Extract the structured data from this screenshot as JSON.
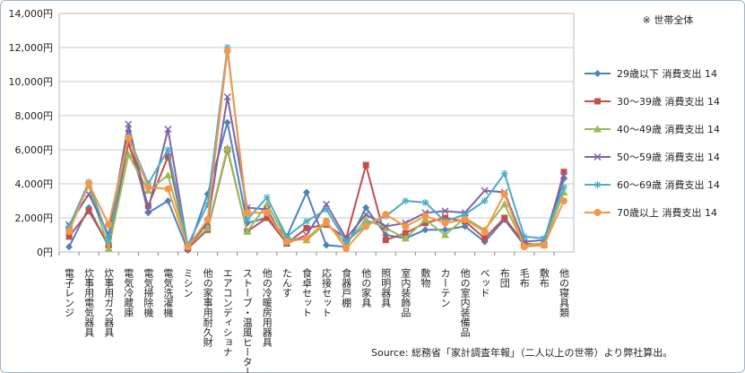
{
  "note": "※ 世帯全体",
  "source": "Source: 総務省「家計調査年報」（二人以上の世帯）より弊社算出。",
  "chart_data": {
    "type": "line",
    "ylim": [
      0,
      14000
    ],
    "yticks": [
      0,
      2000,
      4000,
      6000,
      8000,
      10000,
      12000,
      14000
    ],
    "ytick_labels": [
      "0円",
      "2,000円",
      "4,000円",
      "6,000円",
      "8,000円",
      "10,000円",
      "12,000円",
      "14,000円"
    ],
    "grid": true,
    "legend_position": "right",
    "categories": [
      "電子レンジ",
      "炊事用電気器具",
      "炊事用ガス器具",
      "電気冷蔵庫",
      "電気掃除機",
      "電気洗濯機",
      "ミシン",
      "他の家事用耐久財",
      "エアコンディショナ",
      "ストーブ・温風ヒーター",
      "他の冷暖房用器具",
      "たんす",
      "食卓セット",
      "応接セット",
      "食器戸棚",
      "他の家具",
      "照明器具",
      "室内装飾品",
      "敷物",
      "カーテン",
      "他の室内装備品",
      "ベッド",
      "布団",
      "毛布",
      "敷布",
      "他の寝具類"
    ],
    "series": [
      {
        "name": "29歳以下 消費支出 14",
        "color": "#4f81bd",
        "marker": "diamond",
        "values": [
          300,
          2600,
          300,
          7100,
          2300,
          3000,
          100,
          3400,
          7600,
          1700,
          2000,
          900,
          3500,
          400,
          300,
          2600,
          1000,
          800,
          1300,
          1300,
          1500,
          600,
          1900,
          400,
          500,
          4300
        ]
      },
      {
        "name": "30～39歳 消費支出 14",
        "color": "#c0504d",
        "marker": "square",
        "values": [
          900,
          2400,
          400,
          6400,
          2700,
          5600,
          200,
          1300,
          6000,
          1200,
          2000,
          500,
          1400,
          1600,
          800,
          5100,
          700,
          1100,
          1700,
          2000,
          1800,
          800,
          2000,
          500,
          400,
          4700
        ]
      },
      {
        "name": "40～49歳 消費支出 14",
        "color": "#9bbb59",
        "marker": "triangle",
        "values": [
          1500,
          3900,
          200,
          5700,
          3600,
          4500,
          300,
          1400,
          6100,
          1200,
          2800,
          800,
          700,
          1700,
          500,
          1900,
          1400,
          800,
          1900,
          1000,
          2000,
          1300,
          2800,
          400,
          500,
          3500
        ]
      },
      {
        "name": "50～59歳 消費支出 14",
        "color": "#8064a2",
        "marker": "x",
        "values": [
          1600,
          3400,
          1000,
          7500,
          2500,
          7200,
          300,
          1700,
          9100,
          2600,
          2500,
          500,
          1000,
          2800,
          800,
          2200,
          1500,
          1700,
          2300,
          2400,
          2300,
          3600,
          3500,
          600,
          700,
          4500
        ]
      },
      {
        "name": "60～69歳 消費支出 14",
        "color": "#4bacc6",
        "marker": "star",
        "values": [
          1500,
          4100,
          700,
          6800,
          4000,
          6000,
          400,
          2800,
          12000,
          1900,
          3200,
          900,
          1800,
          2500,
          600,
          1600,
          2100,
          3000,
          2900,
          1800,
          2200,
          3000,
          4600,
          900,
          800,
          3800
        ]
      },
      {
        "name": "70歳以上 消費支出 14",
        "color": "#f79646",
        "marker": "circle",
        "values": [
          1200,
          4000,
          1600,
          6700,
          3800,
          3700,
          300,
          1900,
          11800,
          2300,
          2300,
          600,
          800,
          1800,
          200,
          1500,
          2200,
          1500,
          2100,
          1700,
          1900,
          1200,
          3400,
          300,
          400,
          3000
        ]
      }
    ]
  }
}
